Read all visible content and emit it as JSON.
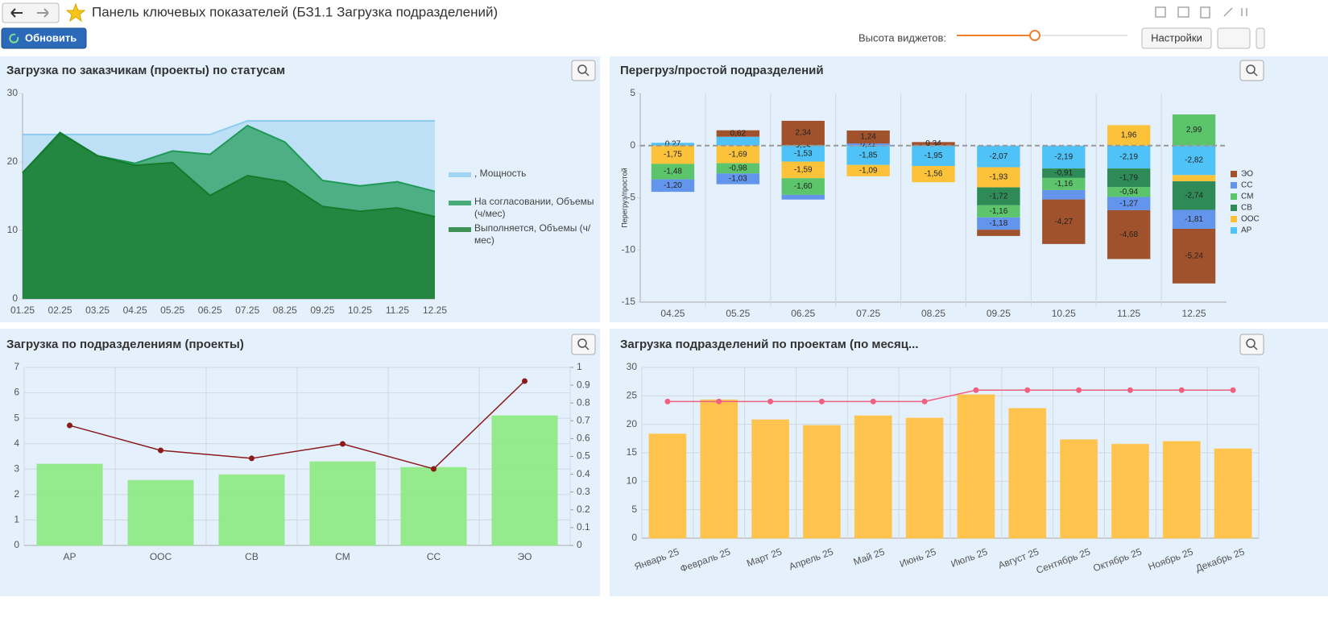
{
  "header": {
    "title": "Панель ключевых показателей (БЗ1.1 Загрузка подразделений)",
    "refresh": "Обновить",
    "widget_height": "Высота виджетов:",
    "settings": "Настройки"
  },
  "chart_data": [
    {
      "type": "area",
      "title": "Загрузка по заказчикам (проекты) по статусам",
      "categories": [
        "01.25",
        "02.25",
        "03.25",
        "04.25",
        "05.25",
        "06.25",
        "07.25",
        "08.25",
        "09.25",
        "10.25",
        "11.25",
        "12.25"
      ],
      "ylim": [
        0,
        30
      ],
      "yticks": [
        0,
        10,
        20,
        30
      ],
      "legend": "right",
      "series": [
        {
          "name": ", Мощность",
          "color": "#8ecdf0",
          "values": [
            24,
            24,
            24,
            24,
            24,
            24,
            26,
            26,
            26,
            26,
            26,
            26
          ]
        },
        {
          "name": "На согласовании, Объемы (ч/мес)",
          "color": "#1f9a55",
          "values": [
            18.4,
            24.3,
            20.9,
            19.8,
            21.6,
            21.1,
            25.3,
            22.9,
            17.3,
            16.5,
            17.1,
            15.7
          ]
        },
        {
          "name": "Выполняется, Объемы (ч/мес)",
          "color": "#157a2b",
          "values": [
            18.4,
            24.2,
            20.9,
            19.5,
            19.9,
            15.1,
            18.0,
            17.1,
            13.5,
            12.8,
            13.3,
            12.0
          ]
        }
      ]
    },
    {
      "type": "stacked_bar",
      "title": "Перегруз/простой подразделений",
      "y_label": "Перегруз/простой",
      "categories": [
        "04.25",
        "05.25",
        "06.25",
        "07.25",
        "08.25",
        "09.25",
        "10.25",
        "11.25",
        "12.25"
      ],
      "ylim": [
        -15,
        5
      ],
      "yticks": [
        5,
        0,
        -5,
        -10,
        -15
      ],
      "legend": "right",
      "series": [
        {
          "name": "ЭО",
          "color": "#a0522d",
          "values": [
            0,
            0.62,
            2.34,
            1.24,
            0.34,
            -0.6,
            -4.27,
            -4.68,
            -5.24
          ],
          "value_labels": [
            null,
            "0,62",
            "2,34",
            "1,24",
            "0,34",
            null,
            "-4,27",
            "-4,68",
            "-5,24"
          ]
        },
        {
          "name": "СС",
          "color": "#6495ed",
          "values": [
            -1.2,
            -1.03,
            -0.45,
            0.21,
            0,
            -1.18,
            -0.9,
            -1.27,
            -1.81
          ],
          "value_labels": [
            "-1,20",
            "-1,03",
            null,
            "0,21",
            null,
            "-1,18",
            null,
            "-1,27",
            "-1,81"
          ]
        },
        {
          "name": "СМ",
          "color": "#5cc46a",
          "values": [
            -1.48,
            -0.98,
            -1.6,
            0,
            0,
            -1.16,
            -1.16,
            -0.94,
            2.99
          ],
          "value_labels": [
            "-1,48",
            "-0,98",
            "-1,60",
            null,
            null,
            "-1,16",
            "-1,16",
            "-0,94",
            "2,99"
          ]
        },
        {
          "name": "СВ",
          "color": "#2e8b57",
          "values": [
            0,
            0,
            0.04,
            0,
            0,
            -1.72,
            -0.91,
            -1.79,
            -2.74
          ],
          "value_labels": [
            null,
            null,
            "0,04",
            null,
            null,
            "-1,72",
            "-0,91",
            "-1,79",
            "-2,74"
          ]
        },
        {
          "name": "ООС",
          "color": "#fbc23a",
          "values": [
            -1.75,
            -1.69,
            -1.59,
            -1.09,
            -1.56,
            -1.93,
            0,
            1.96,
            -0.6
          ],
          "value_labels": [
            "-1,75",
            "-1,69",
            "-1,59",
            "-1,09",
            "-1,56",
            "-1,93",
            null,
            "1,96",
            null
          ]
        },
        {
          "name": "АР",
          "color": "#4fc3f7",
          "values": [
            0.27,
            0.85,
            -1.53,
            -1.85,
            -1.95,
            -2.07,
            -2.19,
            -2.19,
            -2.82
          ],
          "value_labels": [
            "0,27",
            null,
            "-1,53",
            "-1,85",
            "-1,95",
            "-2,07",
            "-2,19",
            "-2,19",
            "-2,82"
          ]
        }
      ]
    },
    {
      "type": "bar_line",
      "title": "Загрузка по подразделениям (проекты)",
      "categories": [
        "АР",
        "ООС",
        "СВ",
        "СМ",
        "СС",
        "ЭО"
      ],
      "ylim": [
        0,
        7
      ],
      "yticks": [
        0,
        1,
        2,
        3,
        4,
        5,
        6,
        7
      ],
      "y2lim": [
        0,
        1
      ],
      "y2ticks": [
        0,
        0.1,
        0.2,
        0.3,
        0.4,
        0.5,
        0.6,
        0.7,
        0.8,
        0.9,
        1
      ],
      "grid": true,
      "series": [
        {
          "type": "bar",
          "color": "#90ea85",
          "values": [
            3.2,
            2.56,
            2.78,
            3.29,
            3.07,
            5.1
          ]
        },
        {
          "type": "line",
          "axis": "y2",
          "color": "#8b1a1a",
          "values": [
            0.674,
            0.534,
            0.489,
            0.57,
            0.43,
            0.923
          ]
        }
      ]
    },
    {
      "type": "bar_line",
      "title": "Загрузка подразделений по проектам (по месяц...",
      "categories": [
        "Январь 25",
        "Февраль 25",
        "Март 25",
        "Апрель 25",
        "Май 25",
        "Июнь 25",
        "Июль 25",
        "Август 25",
        "Сентябрь 25",
        "Октябрь 25",
        "Ноябрь 25",
        "Декабрь 25"
      ],
      "ylim": [
        0,
        30
      ],
      "yticks": [
        0,
        5,
        10,
        15,
        20,
        25,
        30
      ],
      "grid": true,
      "series": [
        {
          "type": "bar",
          "color": "#ffc145",
          "values": [
            18.3,
            24.3,
            20.8,
            19.8,
            21.5,
            21.1,
            25.2,
            22.8,
            17.3,
            16.5,
            17.0,
            15.7
          ]
        },
        {
          "type": "line",
          "color": "#f06080",
          "values": [
            24,
            24,
            24,
            24,
            24,
            24,
            26,
            26,
            26,
            26,
            26,
            26
          ]
        }
      ]
    }
  ]
}
